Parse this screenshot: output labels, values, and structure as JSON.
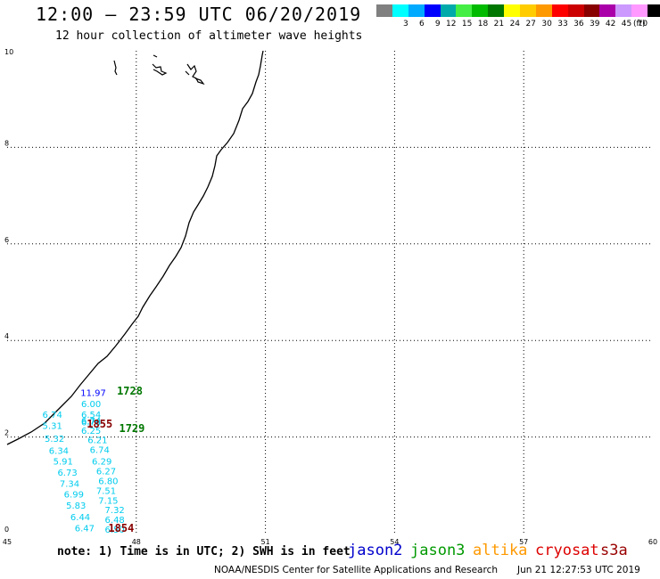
{
  "title": "12:00 – 23:59 UTC 06/20/2019",
  "subtitle": "12 hour collection of altimeter wave heights",
  "legend": {
    "unit": "(ft)",
    "bins": [
      {
        "label": "",
        "color": "#808080"
      },
      {
        "label": "3",
        "color": "#00ffff"
      },
      {
        "label": "6",
        "color": "#00aaff"
      },
      {
        "label": "9",
        "color": "#0000ff"
      },
      {
        "label": "12",
        "color": "#00aaaa"
      },
      {
        "label": "15",
        "color": "#44ee44"
      },
      {
        "label": "18",
        "color": "#00bb00"
      },
      {
        "label": "21",
        "color": "#007700"
      },
      {
        "label": "24",
        "color": "#ffff00"
      },
      {
        "label": "27",
        "color": "#ffcc00"
      },
      {
        "label": "30",
        "color": "#ff9900"
      },
      {
        "label": "33",
        "color": "#ff0000"
      },
      {
        "label": "36",
        "color": "#cc0000"
      },
      {
        "label": "39",
        "color": "#880000"
      },
      {
        "label": "42",
        "color": "#aa00aa"
      },
      {
        "label": "45",
        "color": "#cc99ff"
      },
      {
        "label": "70",
        "color": "#ff99ff"
      },
      {
        "label": "",
        "color": "#000000"
      }
    ]
  },
  "axes": {
    "x_ticks": [
      "45",
      "48",
      "51",
      "54",
      "57",
      "60"
    ],
    "y_ticks": [
      "0",
      "2",
      "4",
      "6",
      "8",
      "10"
    ],
    "x_range": [
      45,
      60
    ],
    "y_range": [
      0,
      10
    ]
  },
  "observations": [
    {
      "t": "11.97",
      "lon": 47.0,
      "lat": 2.85,
      "color": "#0000ff"
    },
    {
      "t": "6.00",
      "lon": 46.95,
      "lat": 2.62,
      "color": "#00ccee"
    },
    {
      "t": "6.54",
      "lon": 46.95,
      "lat": 2.4,
      "color": "#00ccee"
    },
    {
      "t": "6.74",
      "lon": 46.95,
      "lat": 2.27,
      "color": "#00ccee"
    },
    {
      "t": "6.78",
      "lon": 46.95,
      "lat": 2.24,
      "color": "#00ccee"
    },
    {
      "t": "6.25",
      "lon": 46.95,
      "lat": 2.07,
      "color": "#00ccee"
    },
    {
      "t": "6.21",
      "lon": 47.1,
      "lat": 1.87,
      "color": "#00ccee"
    },
    {
      "t": "6.74",
      "lon": 47.15,
      "lat": 1.67,
      "color": "#00ccee"
    },
    {
      "t": "6.29",
      "lon": 47.2,
      "lat": 1.43,
      "color": "#00ccee"
    },
    {
      "t": "6.27",
      "lon": 47.3,
      "lat": 1.23,
      "color": "#00ccee"
    },
    {
      "t": "6.80",
      "lon": 47.35,
      "lat": 1.02,
      "color": "#00ccee"
    },
    {
      "t": "7.51",
      "lon": 47.3,
      "lat": 0.82,
      "color": "#00ccee"
    },
    {
      "t": "7.15",
      "lon": 47.35,
      "lat": 0.62,
      "color": "#00ccee"
    },
    {
      "t": "7.32",
      "lon": 47.5,
      "lat": 0.42,
      "color": "#00ccee"
    },
    {
      "t": "6.48",
      "lon": 47.5,
      "lat": 0.22,
      "color": "#00ccee"
    },
    {
      "t": "6.50",
      "lon": 47.5,
      "lat": 0.02,
      "color": "#00ccee"
    },
    {
      "t": "6.74",
      "lon": 46.05,
      "lat": 2.4,
      "color": "#00ccee"
    },
    {
      "t": "5.31",
      "lon": 46.05,
      "lat": 2.17,
      "color": "#00ccee"
    },
    {
      "t": "5.32",
      "lon": 46.1,
      "lat": 1.9,
      "color": "#00ccee"
    },
    {
      "t": "6.34",
      "lon": 46.2,
      "lat": 1.65,
      "color": "#00ccee"
    },
    {
      "t": "5.91",
      "lon": 46.3,
      "lat": 1.43,
      "color": "#00ccee"
    },
    {
      "t": "6.73",
      "lon": 46.4,
      "lat": 1.2,
      "color": "#00ccee"
    },
    {
      "t": "7.34",
      "lon": 46.45,
      "lat": 0.97,
      "color": "#00ccee"
    },
    {
      "t": "6.99",
      "lon": 46.55,
      "lat": 0.75,
      "color": "#00ccee"
    },
    {
      "t": "5.83",
      "lon": 46.6,
      "lat": 0.52,
      "color": "#00ccee"
    },
    {
      "t": "6.44",
      "lon": 46.7,
      "lat": 0.28,
      "color": "#00ccee"
    },
    {
      "t": "6.47",
      "lon": 46.8,
      "lat": 0.05,
      "color": "#00ccee"
    }
  ],
  "time_labels": [
    {
      "t": "1728",
      "lon": 47.55,
      "lat": 2.88,
      "color": "#007700"
    },
    {
      "t": "1729",
      "lon": 47.6,
      "lat": 2.1,
      "color": "#007700"
    },
    {
      "t": "1855",
      "lon": 46.85,
      "lat": 2.2,
      "color": "#880000"
    },
    {
      "t": "1854",
      "lon": 47.35,
      "lat": 0.04,
      "color": "#880000"
    }
  ],
  "footer": {
    "note": "note:  1) Time is in UTC;  2) SWH is in feet",
    "satellites": [
      {
        "name": "jason2",
        "color": "#0000cc"
      },
      {
        "name": "jason3",
        "color": "#009900"
      },
      {
        "name": "altika",
        "color": "#ff9900"
      },
      {
        "name": "cryosat",
        "color": "#dd0000"
      },
      {
        "name": "s3a",
        "color": "#990000"
      }
    ],
    "credit": "NOAA/NESDIS Center for Satellite Applications and Research",
    "timestamp": "Jun 21 12:27:53 UTC 2019"
  }
}
